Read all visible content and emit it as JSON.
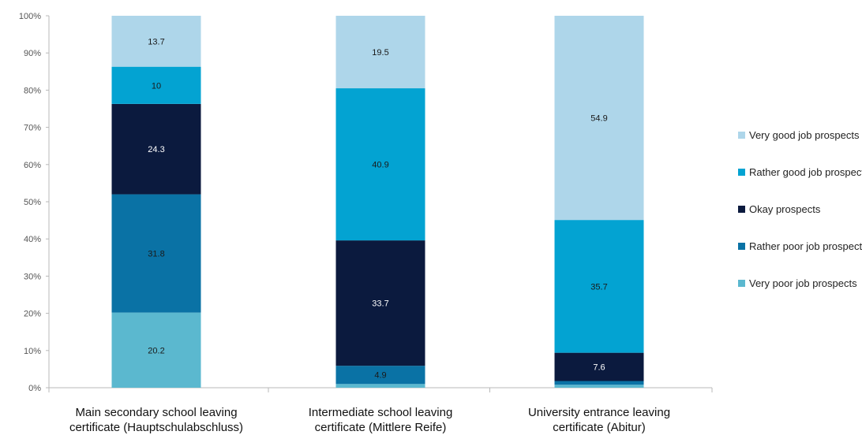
{
  "chart_data": {
    "type": "bar",
    "stacked": true,
    "categories": [
      [
        "Main secondary school leaving",
        "certificate (Hauptschulabschluss)"
      ],
      [
        "Intermediate school leaving",
        "certificate (Mittlere Reife)"
      ],
      [
        "University entrance leaving",
        "certificate (Abitur)"
      ]
    ],
    "series": [
      {
        "name": "Very poor job prospects",
        "values": [
          20.2,
          1.0,
          0.8
        ],
        "labels": [
          "20.2",
          "",
          ""
        ],
        "color": "#5bb8cf",
        "text_color": "#1a1a1a"
      },
      {
        "name": "Rather poor job prospects",
        "values": [
          31.8,
          4.9,
          1.0
        ],
        "labels": [
          "31.8",
          "4.9",
          ""
        ],
        "color": "#0a72a5",
        "text_color": "#1a1a1a"
      },
      {
        "name": "Okay prospects",
        "values": [
          24.3,
          33.7,
          7.6
        ],
        "labels": [
          "24.3",
          "33.7",
          "7.6"
        ],
        "color": "#0b1a3e",
        "text_color": "#ffffff"
      },
      {
        "name": "Rather good job prospects",
        "values": [
          10,
          40.9,
          35.7
        ],
        "labels": [
          "10",
          "40.9",
          "35.7"
        ],
        "color": "#03a3d2",
        "text_color": "#1a1a1a"
      },
      {
        "name": "Very good job prospects",
        "values": [
          13.7,
          19.5,
          54.9
        ],
        "labels": [
          "13.7",
          "19.5",
          "54.9"
        ],
        "color": "#aed6ea",
        "text_color": "#1a1a1a"
      }
    ],
    "y_ticks": [
      "0%",
      "10%",
      "20%",
      "30%",
      "40%",
      "50%",
      "60%",
      "70%",
      "80%",
      "90%",
      "100%"
    ],
    "ylim": [
      0,
      100
    ],
    "grid": false,
    "legend": "right",
    "legend_order": [
      4,
      3,
      2,
      1,
      0
    ]
  }
}
